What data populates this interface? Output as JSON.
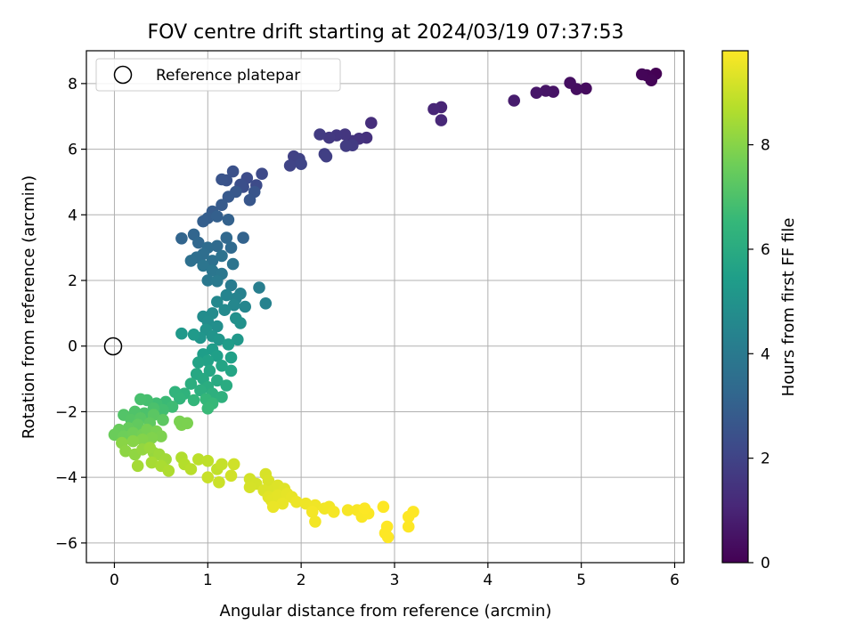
{
  "chart_data": {
    "type": "scatter",
    "title": "FOV centre drift starting at 2024/03/19 07:37:53",
    "xlabel": "Angular distance from reference (arcmin)",
    "ylabel": "Rotation from reference (arcmin)",
    "xlim": [
      -0.3,
      6.1
    ],
    "ylim": [
      -6.6,
      9.0
    ],
    "xticks": [
      0,
      1,
      2,
      3,
      4,
      5,
      6
    ],
    "yticks": [
      -6,
      -4,
      -2,
      0,
      2,
      4,
      6,
      8
    ],
    "grid": true,
    "legend": {
      "position": "top-left",
      "entries": [
        {
          "label": "Reference platepar",
          "marker": "open-circle"
        }
      ]
    },
    "reference_point": {
      "x": 0,
      "y": 0
    },
    "colorbar": {
      "label": "Hours from first FF file",
      "range": [
        0,
        9.8
      ],
      "ticks": [
        0,
        2,
        4,
        6,
        8
      ],
      "colormap": "viridis",
      "colormap_stops": [
        "#440154",
        "#482878",
        "#3e4989",
        "#31688e",
        "#26828e",
        "#1f9e89",
        "#35b779",
        "#6ece58",
        "#b5de2b",
        "#fde725"
      ]
    },
    "series": [
      {
        "color_by": "hours_from_first_ff_file",
        "points": [
          [
            5.8,
            8.3,
            0.0
          ],
          [
            5.7,
            8.25,
            0.05
          ],
          [
            5.75,
            8.1,
            0.1
          ],
          [
            5.65,
            8.28,
            0.12
          ],
          [
            5.05,
            7.85,
            0.3
          ],
          [
            4.95,
            7.83,
            0.35
          ],
          [
            4.88,
            8.02,
            0.4
          ],
          [
            4.7,
            7.75,
            0.5
          ],
          [
            4.62,
            7.78,
            0.55
          ],
          [
            4.52,
            7.72,
            0.6
          ],
          [
            4.28,
            7.48,
            0.75
          ],
          [
            3.5,
            7.28,
            1.0
          ],
          [
            3.42,
            7.22,
            1.05
          ],
          [
            3.5,
            6.88,
            1.1
          ],
          [
            2.75,
            6.8,
            1.3
          ],
          [
            2.7,
            6.35,
            1.4
          ],
          [
            2.62,
            6.32,
            1.45
          ],
          [
            2.55,
            6.25,
            1.5
          ],
          [
            2.47,
            6.45,
            1.55
          ],
          [
            2.38,
            6.42,
            1.6
          ],
          [
            2.3,
            6.35,
            1.65
          ],
          [
            2.2,
            6.45,
            1.7
          ],
          [
            2.55,
            6.12,
            1.72
          ],
          [
            2.48,
            6.1,
            1.75
          ],
          [
            2.25,
            5.85,
            1.8
          ],
          [
            2.27,
            5.78,
            1.85
          ],
          [
            1.92,
            5.78,
            1.9
          ],
          [
            1.98,
            5.7,
            1.95
          ],
          [
            1.88,
            5.5,
            2.0
          ],
          [
            2.0,
            5.55,
            2.05
          ],
          [
            1.58,
            5.25,
            2.2
          ],
          [
            1.52,
            4.9,
            2.25
          ],
          [
            1.42,
            5.12,
            2.3
          ],
          [
            1.38,
            4.85,
            2.35
          ],
          [
            1.35,
            4.92,
            2.4
          ],
          [
            1.27,
            5.32,
            2.45
          ],
          [
            1.2,
            5.05,
            2.5
          ],
          [
            1.15,
            5.08,
            2.55
          ],
          [
            1.5,
            4.7,
            2.6
          ],
          [
            1.45,
            4.45,
            2.65
          ],
          [
            1.3,
            4.7,
            2.7
          ],
          [
            1.22,
            4.55,
            2.75
          ],
          [
            1.15,
            4.3,
            2.8
          ],
          [
            1.05,
            4.1,
            2.85
          ],
          [
            1.0,
            3.9,
            2.9
          ],
          [
            0.95,
            3.8,
            2.95
          ],
          [
            1.1,
            3.95,
            3.0
          ],
          [
            1.22,
            3.85,
            3.05
          ],
          [
            1.38,
            3.3,
            3.1
          ],
          [
            0.72,
            3.28,
            3.15
          ],
          [
            0.85,
            3.4,
            3.2
          ],
          [
            0.9,
            3.15,
            3.25
          ],
          [
            1.2,
            3.3,
            3.3
          ],
          [
            1.25,
            3.0,
            3.35
          ],
          [
            1.1,
            3.05,
            3.4
          ],
          [
            1.0,
            3.0,
            3.45
          ],
          [
            0.95,
            2.8,
            3.5
          ],
          [
            0.88,
            2.7,
            3.55
          ],
          [
            0.82,
            2.6,
            3.6
          ],
          [
            1.05,
            2.6,
            3.65
          ],
          [
            1.15,
            2.75,
            3.7
          ],
          [
            1.27,
            2.5,
            3.75
          ],
          [
            0.95,
            2.45,
            3.8
          ],
          [
            1.05,
            2.3,
            3.85
          ],
          [
            1.15,
            2.2,
            3.9
          ],
          [
            1.0,
            2.0,
            3.95
          ],
          [
            1.1,
            1.98,
            4.0
          ],
          [
            1.25,
            1.85,
            4.05
          ],
          [
            1.55,
            1.78,
            4.2
          ],
          [
            1.35,
            1.6,
            4.3
          ],
          [
            1.62,
            1.3,
            4.35
          ],
          [
            1.3,
            1.45,
            4.4
          ],
          [
            1.2,
            1.55,
            4.45
          ],
          [
            1.4,
            1.2,
            4.5
          ],
          [
            1.28,
            1.25,
            4.55
          ],
          [
            1.1,
            1.35,
            4.6
          ],
          [
            1.18,
            1.1,
            4.65
          ],
          [
            1.05,
            1.0,
            4.7
          ],
          [
            0.95,
            0.9,
            4.75
          ],
          [
            1.0,
            0.75,
            4.8
          ],
          [
            1.1,
            0.6,
            4.85
          ],
          [
            1.3,
            0.85,
            4.9
          ],
          [
            1.35,
            0.7,
            4.95
          ],
          [
            0.98,
            0.5,
            5.0
          ],
          [
            1.05,
            0.3,
            5.05
          ],
          [
            0.92,
            0.25,
            5.1
          ],
          [
            1.12,
            0.2,
            5.15
          ],
          [
            1.32,
            0.2,
            5.2
          ],
          [
            0.72,
            0.38,
            5.25
          ],
          [
            0.85,
            0.35,
            5.3
          ],
          [
            1.22,
            0.05,
            5.35
          ],
          [
            1.05,
            -0.1,
            5.4
          ],
          [
            0.95,
            -0.25,
            5.45
          ],
          [
            1.1,
            -0.3,
            5.5
          ],
          [
            1.25,
            -0.35,
            5.55
          ],
          [
            1.0,
            -0.45,
            5.6
          ],
          [
            0.9,
            -0.5,
            5.65
          ],
          [
            1.15,
            -0.6,
            5.7
          ],
          [
            1.25,
            -0.75,
            5.75
          ],
          [
            1.02,
            -0.75,
            5.8
          ],
          [
            0.88,
            -0.85,
            5.85
          ],
          [
            0.95,
            -1.0,
            5.9
          ],
          [
            1.1,
            -1.05,
            5.95
          ],
          [
            1.2,
            -1.2,
            6.0
          ],
          [
            1.0,
            -1.25,
            6.05
          ],
          [
            0.82,
            -1.15,
            6.1
          ],
          [
            0.92,
            -1.35,
            6.15
          ],
          [
            1.05,
            -1.45,
            6.2
          ],
          [
            1.15,
            -1.55,
            6.25
          ],
          [
            0.75,
            -1.45,
            6.3
          ],
          [
            0.65,
            -1.4,
            6.35
          ],
          [
            0.7,
            -1.6,
            6.4
          ],
          [
            0.85,
            -1.65,
            6.45
          ],
          [
            0.98,
            -1.62,
            6.5
          ],
          [
            1.05,
            -1.75,
            6.55
          ],
          [
            1.0,
            -1.9,
            6.6
          ],
          [
            0.55,
            -1.7,
            6.65
          ],
          [
            0.62,
            -1.85,
            6.7
          ],
          [
            0.45,
            -1.75,
            6.75
          ],
          [
            0.52,
            -1.95,
            6.8
          ],
          [
            0.35,
            -1.65,
            6.85
          ],
          [
            0.28,
            -1.62,
            6.9
          ],
          [
            0.42,
            -1.9,
            6.95
          ],
          [
            0.32,
            -2.05,
            7.0
          ],
          [
            0.22,
            -2.0,
            7.05
          ],
          [
            0.1,
            -2.1,
            7.1
          ],
          [
            0.18,
            -2.25,
            7.15
          ],
          [
            0.28,
            -2.2,
            7.2
          ],
          [
            0.42,
            -2.1,
            7.25
          ],
          [
            0.52,
            -2.25,
            7.3
          ],
          [
            0.38,
            -2.35,
            7.35
          ],
          [
            0.25,
            -2.4,
            7.4
          ],
          [
            0.15,
            -2.5,
            7.45
          ],
          [
            0.05,
            -2.55,
            7.5
          ],
          [
            0.0,
            -2.7,
            7.55
          ],
          [
            0.1,
            -2.75,
            7.6
          ],
          [
            0.2,
            -2.65,
            7.65
          ],
          [
            0.3,
            -2.7,
            7.7
          ],
          [
            0.35,
            -2.55,
            7.75
          ],
          [
            0.45,
            -2.6,
            7.8
          ],
          [
            0.5,
            -2.75,
            7.85
          ],
          [
            0.4,
            -2.8,
            7.9
          ],
          [
            0.3,
            -2.85,
            7.95
          ],
          [
            0.2,
            -2.9,
            8.0
          ],
          [
            0.08,
            -2.95,
            8.05
          ],
          [
            0.12,
            -3.2,
            8.1
          ],
          [
            0.22,
            -3.3,
            8.15
          ],
          [
            0.3,
            -3.15,
            8.2
          ],
          [
            0.42,
            -3.25,
            8.25
          ],
          [
            0.38,
            -3.1,
            8.3
          ],
          [
            0.72,
            -2.4,
            7.85
          ],
          [
            0.7,
            -2.3,
            7.8
          ],
          [
            0.78,
            -2.35,
            7.82
          ],
          [
            0.48,
            -3.3,
            8.35
          ],
          [
            0.55,
            -3.45,
            8.4
          ],
          [
            0.25,
            -3.65,
            8.45
          ],
          [
            0.4,
            -3.55,
            8.5
          ],
          [
            0.5,
            -3.65,
            8.55
          ],
          [
            0.58,
            -3.8,
            8.6
          ],
          [
            0.72,
            -3.4,
            8.65
          ],
          [
            0.75,
            -3.6,
            8.7
          ],
          [
            0.82,
            -3.75,
            8.75
          ],
          [
            0.9,
            -3.45,
            8.8
          ],
          [
            1.0,
            -3.5,
            8.85
          ],
          [
            1.1,
            -3.75,
            8.9
          ],
          [
            1.15,
            -3.6,
            8.95
          ],
          [
            1.0,
            -4.0,
            9.0
          ],
          [
            1.12,
            -4.15,
            9.05
          ],
          [
            1.28,
            -3.6,
            9.1
          ],
          [
            1.25,
            -3.95,
            9.12
          ],
          [
            1.45,
            -4.05,
            9.15
          ],
          [
            1.52,
            -4.2,
            9.18
          ],
          [
            1.45,
            -4.3,
            9.2
          ],
          [
            1.62,
            -3.9,
            9.22
          ],
          [
            1.65,
            -4.1,
            9.25
          ],
          [
            1.6,
            -4.4,
            9.28
          ],
          [
            1.7,
            -4.4,
            9.3
          ],
          [
            1.75,
            -4.25,
            9.32
          ],
          [
            1.82,
            -4.35,
            9.35
          ],
          [
            1.65,
            -4.6,
            9.38
          ],
          [
            1.68,
            -4.7,
            9.4
          ],
          [
            1.75,
            -4.55,
            9.42
          ],
          [
            1.85,
            -4.5,
            9.45
          ],
          [
            1.9,
            -4.6,
            9.48
          ],
          [
            1.8,
            -4.8,
            9.5
          ],
          [
            1.7,
            -4.9,
            9.52
          ],
          [
            1.95,
            -4.75,
            9.55
          ],
          [
            2.05,
            -4.8,
            9.58
          ],
          [
            2.15,
            -4.85,
            9.6
          ],
          [
            2.25,
            -4.95,
            9.62
          ],
          [
            2.3,
            -4.9,
            9.64
          ],
          [
            2.12,
            -5.05,
            9.66
          ],
          [
            2.35,
            -5.05,
            9.68
          ],
          [
            2.5,
            -5.0,
            9.7
          ],
          [
            2.6,
            -5.0,
            9.72
          ],
          [
            2.65,
            -5.2,
            9.74
          ],
          [
            2.72,
            -5.1,
            9.76
          ],
          [
            2.68,
            -4.95,
            9.78
          ],
          [
            2.88,
            -4.9,
            9.8
          ],
          [
            2.92,
            -5.5,
            9.8
          ],
          [
            2.9,
            -5.7,
            9.8
          ],
          [
            2.93,
            -5.82,
            9.8
          ],
          [
            3.15,
            -5.2,
            9.8
          ],
          [
            3.2,
            -5.05,
            9.8
          ],
          [
            3.15,
            -5.5,
            9.8
          ],
          [
            2.15,
            -5.35,
            9.65
          ]
        ]
      }
    ]
  }
}
